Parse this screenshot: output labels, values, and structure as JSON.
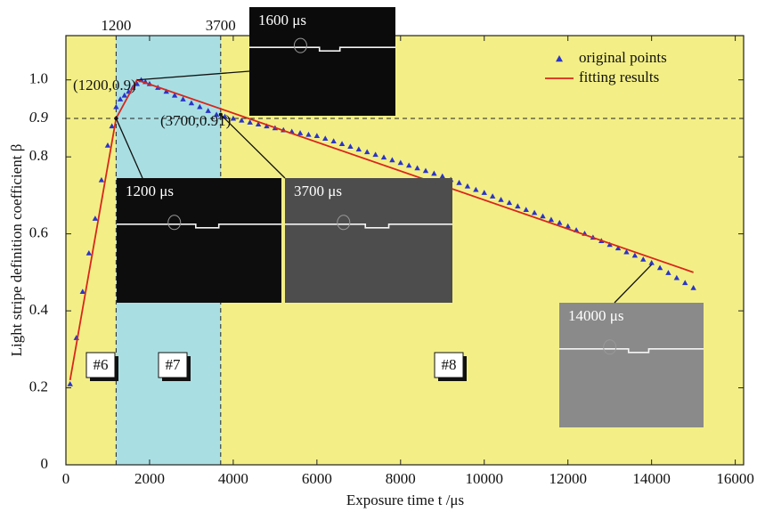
{
  "chart_data": {
    "type": "scatter",
    "xlabel": "Exposure time t /μs",
    "ylabel": "Light stripe definition coefficient β",
    "xlim": [
      0,
      16200
    ],
    "ylim": [
      0,
      1.115
    ],
    "xticks": [
      0,
      2000,
      4000,
      6000,
      8000,
      10000,
      12000,
      14000,
      16000
    ],
    "yticks": [
      0,
      0.2,
      0.4,
      0.6,
      0.8,
      {
        "value": 1,
        "label": "1.0"
      }
    ],
    "background": "#f3ef86",
    "legend": "top-right",
    "region": {
      "from": 1200,
      "to": 3700,
      "color": "#a9dfe3"
    },
    "vlines": [
      {
        "value": 1200,
        "label": "1200"
      },
      {
        "value": 3700,
        "label": "3700"
      }
    ],
    "hline": {
      "value": 0.9,
      "label": "0.9"
    },
    "annotations": [
      {
        "text": "(1200,0.9)",
        "x": 1200,
        "y": 0.9
      },
      {
        "text": "(3700,0.91)",
        "x": 3700,
        "y": 0.91
      }
    ],
    "zones": [
      "#6",
      "#7",
      "#8"
    ],
    "insets": [
      "1600 μs",
      "1200 μs",
      "3700 μs",
      "14000 μs"
    ],
    "series": [
      {
        "name": "original points",
        "kind": "marker",
        "color": "#2a35c8",
        "x": [
          100,
          250,
          400,
          550,
          700,
          850,
          1000,
          1100,
          1200,
          1300,
          1400,
          1500,
          1600,
          1700,
          1800,
          1900,
          2000,
          2200,
          2400,
          2600,
          2800,
          3000,
          3200,
          3400,
          3600,
          3800,
          4000,
          4200,
          4400,
          4600,
          4800,
          5000,
          5200,
          5400,
          5600,
          5800,
          6000,
          6200,
          6400,
          6600,
          6800,
          7000,
          7200,
          7400,
          7600,
          7800,
          8000,
          8200,
          8400,
          8600,
          8800,
          9000,
          9200,
          9400,
          9600,
          9800,
          10000,
          10200,
          10400,
          10600,
          10800,
          11000,
          11200,
          11400,
          11600,
          11800,
          12000,
          12200,
          12400,
          12600,
          12800,
          13000,
          13200,
          13400,
          13600,
          13800,
          14000,
          14200,
          14400,
          14600,
          14800,
          15000
        ],
        "values": [
          0.21,
          0.33,
          0.45,
          0.55,
          0.64,
          0.74,
          0.83,
          0.88,
          0.93,
          0.95,
          0.96,
          0.97,
          0.98,
          0.99,
          1.0,
          0.995,
          0.99,
          0.98,
          0.97,
          0.96,
          0.95,
          0.94,
          0.93,
          0.92,
          0.91,
          0.905,
          0.9,
          0.895,
          0.89,
          0.885,
          0.88,
          0.875,
          0.87,
          0.866,
          0.862,
          0.858,
          0.855,
          0.848,
          0.841,
          0.834,
          0.827,
          0.82,
          0.813,
          0.806,
          0.799,
          0.792,
          0.785,
          0.778,
          0.771,
          0.764,
          0.757,
          0.75,
          0.741,
          0.733,
          0.724,
          0.715,
          0.707,
          0.698,
          0.689,
          0.681,
          0.672,
          0.663,
          0.655,
          0.646,
          0.637,
          0.629,
          0.62,
          0.61,
          0.601,
          0.591,
          0.582,
          0.572,
          0.563,
          0.553,
          0.544,
          0.534,
          0.525,
          0.512,
          0.499,
          0.486,
          0.473,
          0.46
        ]
      },
      {
        "name": "fitting results",
        "kind": "line",
        "color": "#d9261c",
        "x": [
          100,
          1200,
          1700,
          15000
        ],
        "values": [
          0.22,
          0.9,
          1.0,
          0.5
        ]
      }
    ]
  }
}
